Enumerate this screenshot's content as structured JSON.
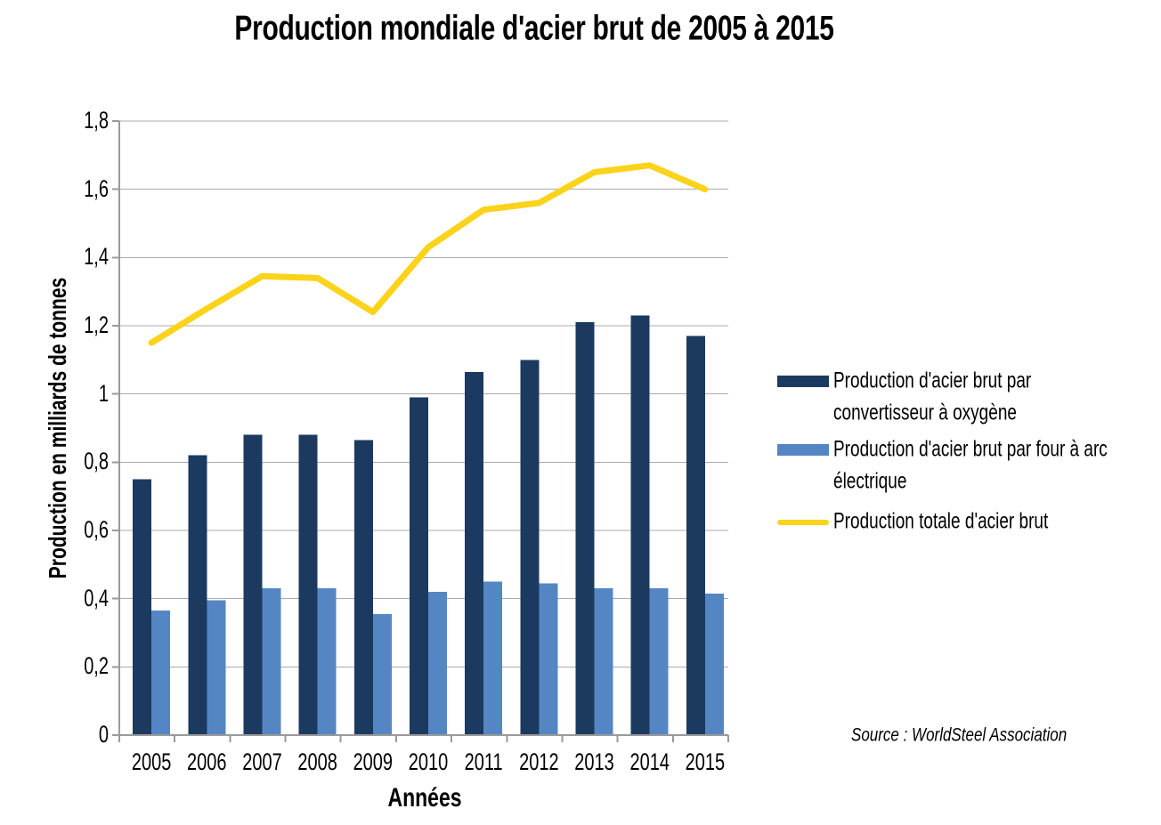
{
  "chart_data": {
    "type": "bar+line",
    "title": "Production mondiale d'acier brut de 2005 à 2015",
    "xlabel": "Années",
    "ylabel": "Production en milliards de tonnes",
    "categories": [
      "2005",
      "2006",
      "2007",
      "2008",
      "2009",
      "2010",
      "2011",
      "2012",
      "2013",
      "2014",
      "2015"
    ],
    "series": [
      {
        "name": "Production d'acier brut par convertisseur à oxygène",
        "type": "bar",
        "color": "#1C3A5F",
        "values": [
          0.75,
          0.82,
          0.88,
          0.88,
          0.865,
          0.99,
          1.065,
          1.1,
          1.21,
          1.23,
          1.17
        ]
      },
      {
        "name": "Production d'acier brut par four à arc électrique",
        "type": "bar",
        "color": "#5586C4",
        "values": [
          0.365,
          0.395,
          0.43,
          0.43,
          0.355,
          0.42,
          0.45,
          0.445,
          0.43,
          0.43,
          0.415
        ]
      },
      {
        "name": "Production totale d'acier brut",
        "type": "line",
        "color": "#FBD31B",
        "values": [
          1.15,
          1.25,
          1.345,
          1.34,
          1.24,
          1.43,
          1.54,
          1.56,
          1.65,
          1.67,
          1.6
        ]
      }
    ],
    "ylim": [
      0,
      1.8
    ],
    "ytick_step": 0.2,
    "ytick_labels": [
      "0",
      "0,2",
      "0,4",
      "0,6",
      "0,8",
      "1",
      "1,2",
      "1,4",
      "1,6",
      "1,8"
    ],
    "grid": true,
    "gridline_color": "#ABABAB",
    "axis_color": "#9A9A9A",
    "legend_position": "right",
    "source": "Source : WorldSteel Association"
  }
}
